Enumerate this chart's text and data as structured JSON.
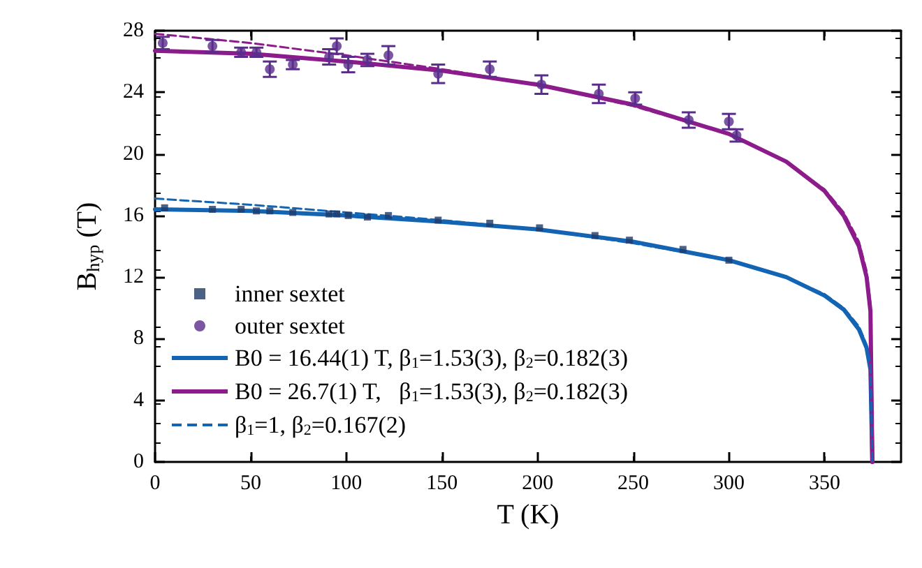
{
  "chart_data": {
    "type": "scatter",
    "xlabel": "T (K)",
    "ylabel": "B$_{hyp}$ (T)",
    "xlim": [
      0,
      390
    ],
    "xticks": [
      0,
      50,
      100,
      150,
      200,
      250,
      300,
      350
    ],
    "ylim": [
      0,
      28
    ],
    "yticks": [
      0,
      4,
      8,
      12,
      16,
      20,
      24,
      28
    ],
    "grid": false,
    "legend": "bottom left",
    "series": [
      {
        "name": "inner sextet",
        "marker": "square",
        "color": "#1f3a68",
        "x": [
          5,
          30,
          45,
          53,
          60,
          72,
          91,
          95,
          101,
          111,
          122,
          148,
          175,
          201,
          230,
          248,
          276,
          300
        ],
        "values": [
          16.5,
          16.4,
          16.4,
          16.3,
          16.3,
          16.2,
          16.1,
          16.1,
          16.0,
          15.9,
          16.0,
          15.7,
          15.5,
          15.2,
          14.7,
          14.4,
          13.8,
          13.1
        ]
      },
      {
        "name": "outer sextet",
        "marker": "circle",
        "color": "#5a2d8c",
        "x": [
          4,
          30,
          45,
          53,
          60,
          72,
          91,
          95,
          101,
          111,
          122,
          148,
          175,
          202,
          232,
          251,
          279,
          300,
          304
        ],
        "values": [
          27.2,
          27.0,
          26.6,
          26.6,
          25.5,
          25.8,
          26.3,
          27.0,
          25.8,
          26.1,
          26.4,
          25.2,
          25.5,
          24.5,
          23.9,
          23.6,
          22.2,
          22.1,
          21.2
        ],
        "errors": [
          0.4,
          0.4,
          0.3,
          0.3,
          0.5,
          0.3,
          0.5,
          0.5,
          0.5,
          0.4,
          0.6,
          0.6,
          0.5,
          0.6,
          0.6,
          0.4,
          0.5,
          0.5,
          0.4
        ]
      },
      {
        "name": "B0 = 16.44(1) T, β$_{1}$=1.53(3), β$_{2}$=0.182(3)",
        "type": "line",
        "marker": "none",
        "line_style": "solid",
        "color": "#1464b4",
        "x": [
          0,
          50,
          100,
          150,
          200,
          250,
          300,
          330,
          350,
          360,
          368,
          372,
          374,
          375
        ],
        "values": [
          16.4,
          16.3,
          16.0,
          15.6,
          15.1,
          14.3,
          13.1,
          12.0,
          10.8,
          9.9,
          8.6,
          7.4,
          6.0,
          0
        ]
      },
      {
        "name": "B0 = 26.7(1) T,   β$_{1}$=1.53(3), β$_{2}$=0.182(3)",
        "type": "line",
        "marker": "none",
        "line_style": "solid",
        "color": "#8c1c8c",
        "x": [
          0,
          50,
          100,
          150,
          200,
          250,
          300,
          330,
          350,
          360,
          368,
          372,
          374,
          375
        ],
        "values": [
          26.7,
          26.5,
          26.0,
          25.4,
          24.5,
          23.2,
          21.3,
          19.5,
          17.6,
          16.0,
          14.0,
          12.0,
          9.8,
          0
        ]
      },
      {
        "type": "line",
        "marker": "none",
        "line_style": "dashed",
        "color": "#8c1c8c",
        "x": [
          0,
          50,
          100,
          150,
          200,
          250,
          300,
          330,
          350,
          360,
          368,
          372,
          374,
          375
        ],
        "values": [
          27.8,
          27.2,
          26.4,
          25.5,
          24.5,
          23.1,
          21.3,
          19.5,
          17.7,
          16.2,
          14.3,
          12.4,
          10.3,
          0
        ]
      },
      {
        "name": "β$_{1}$=1, β$_{2}$=0.167(2)",
        "type": "line",
        "marker": "none",
        "line_style": "dashed",
        "color": "#1464b4",
        "x": [
          0,
          50,
          100,
          150,
          200,
          250,
          300,
          330,
          350,
          360,
          368,
          372,
          374,
          375
        ],
        "values": [
          17.1,
          16.7,
          16.2,
          15.7,
          15.1,
          14.2,
          13.1,
          12.0,
          10.9,
          10.0,
          8.8,
          7.6,
          6.4,
          0
        ]
      }
    ]
  }
}
